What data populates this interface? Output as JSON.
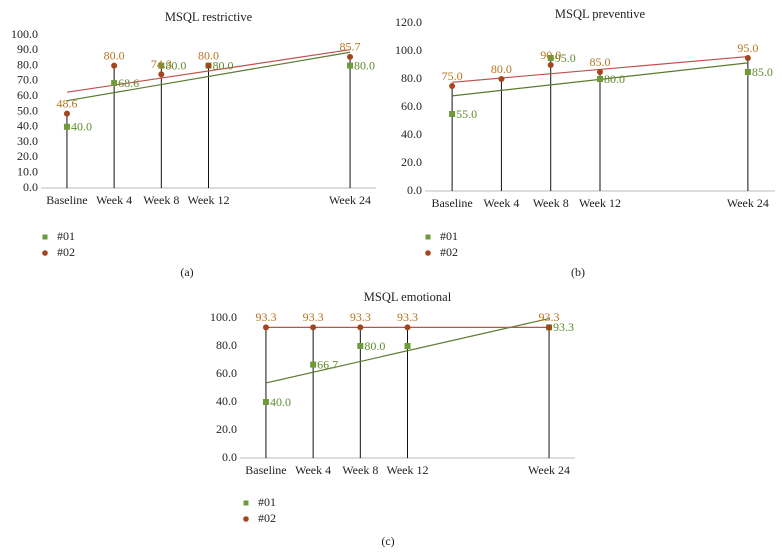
{
  "chart_data": [
    {
      "type": "scatter",
      "title": "MSQL restrictive",
      "caption": "(a)",
      "x": [
        0,
        4,
        8,
        12,
        24
      ],
      "xlim": [
        -2.2,
        26.2
      ],
      "xticks": [
        {
          "value": 0,
          "label": "Baseline"
        },
        {
          "value": 4,
          "label": "Week 4"
        },
        {
          "value": 8,
          "label": "Week 8"
        },
        {
          "value": 12,
          "label": "Week 12"
        },
        {
          "value": 24,
          "label": "Week 24"
        }
      ],
      "ylim": [
        0,
        100
      ],
      "yticks": [
        {
          "value": 0,
          "label": "0.0"
        },
        {
          "value": 10,
          "label": "10.0"
        },
        {
          "value": 20,
          "label": "20.0"
        },
        {
          "value": 30,
          "label": "30.0"
        },
        {
          "value": 40,
          "label": "40.0"
        },
        {
          "value": 50,
          "label": "50.0"
        },
        {
          "value": 60,
          "label": "60.0"
        },
        {
          "value": 70,
          "label": "70.0"
        },
        {
          "value": 80,
          "label": "80.0"
        },
        {
          "value": 90,
          "label": "90.0"
        },
        {
          "value": 100,
          "label": "100.0"
        }
      ],
      "trendline": true,
      "drop_lines": true,
      "series": [
        {
          "name": "#01",
          "color": "#6f9a3a",
          "trend_color": "#5b7a2c",
          "label_color": "#5f8a2e",
          "marker": "square",
          "values": [
            40.0,
            68.6,
            80.0,
            80.0,
            80.0
          ],
          "value_labels": [
            "40.0",
            "68.6",
            "80.0",
            "80.0",
            "80.0"
          ]
        },
        {
          "name": "#02",
          "color": "#a3461c",
          "trend_color": "#c0504d",
          "label_color": "#b5741f",
          "marker": "circle",
          "values": [
            48.6,
            80.0,
            74.3,
            80.0,
            85.7
          ],
          "value_labels": [
            "48.6",
            "80.0",
            "74.3",
            "80.0",
            "85.7"
          ]
        }
      ]
    },
    {
      "type": "scatter",
      "title": "MSQL preventive",
      "caption": "(b)",
      "x": [
        0,
        4,
        8,
        12,
        24
      ],
      "xlim": [
        -2.2,
        26.2
      ],
      "xticks": [
        {
          "value": 0,
          "label": "Baseline"
        },
        {
          "value": 4,
          "label": "Week 4"
        },
        {
          "value": 8,
          "label": "Week 8"
        },
        {
          "value": 12,
          "label": "Week 12"
        },
        {
          "value": 24,
          "label": "Week 24"
        }
      ],
      "ylim": [
        0,
        120
      ],
      "yticks": [
        {
          "value": 0,
          "label": "0.0"
        },
        {
          "value": 20,
          "label": "20.0"
        },
        {
          "value": 40,
          "label": "40.0"
        },
        {
          "value": 60,
          "label": "60.0"
        },
        {
          "value": 80,
          "label": "80.0"
        },
        {
          "value": 100,
          "label": "100.0"
        },
        {
          "value": 120,
          "label": "120.0"
        }
      ],
      "trendline": true,
      "drop_lines": true,
      "series": [
        {
          "name": "#01",
          "color": "#6f9a3a",
          "trend_color": "#5b7a2c",
          "label_color": "#5f8a2e",
          "marker": "square",
          "values": [
            55.0,
            null,
            95.0,
            80.0,
            85.0
          ],
          "value_labels": [
            "55.0",
            null,
            "95.0",
            "80.0",
            "85.0"
          ]
        },
        {
          "name": "#02",
          "color": "#a3461c",
          "trend_color": "#c0504d",
          "label_color": "#b5741f",
          "marker": "circle",
          "values": [
            75.0,
            80.0,
            90.0,
            85.0,
            95.0
          ],
          "value_labels": [
            "75.0",
            "80.0",
            "90.0",
            "85.0",
            "95.0"
          ]
        }
      ]
    },
    {
      "type": "scatter",
      "title": "MSQL emotional",
      "caption": "(c)",
      "x": [
        0,
        4,
        8,
        12,
        24
      ],
      "xlim": [
        -2.2,
        26.2
      ],
      "xticks": [
        {
          "value": 0,
          "label": "Baseline"
        },
        {
          "value": 4,
          "label": "Week 4"
        },
        {
          "value": 8,
          "label": "Week 8"
        },
        {
          "value": 12,
          "label": "Week 12"
        },
        {
          "value": 24,
          "label": "Week 24"
        }
      ],
      "ylim": [
        0,
        100
      ],
      "yticks": [
        {
          "value": 0,
          "label": "0.0"
        },
        {
          "value": 20,
          "label": "20.0"
        },
        {
          "value": 40,
          "label": "40.0"
        },
        {
          "value": 60,
          "label": "60.0"
        },
        {
          "value": 80,
          "label": "80.0"
        },
        {
          "value": 100,
          "label": "100.0"
        }
      ],
      "trendline": true,
      "drop_lines": true,
      "series": [
        {
          "name": "#01",
          "color": "#6f9a3a",
          "trend_color": "#5b7a2c",
          "label_color": "#5f8a2e",
          "marker": "square",
          "values": [
            40.0,
            66.7,
            80.0,
            80.0,
            93.3
          ],
          "value_labels": [
            "40.0",
            "66.7",
            "80.0",
            null,
            "93.3"
          ]
        },
        {
          "name": "#02",
          "color": "#a3461c",
          "trend_color": "#c0504d",
          "label_color": "#b5741f",
          "marker": "circle",
          "values": [
            93.3,
            93.3,
            93.3,
            93.3,
            93.3
          ],
          "value_labels": [
            "93.3",
            "93.3",
            "93.3",
            "93.3",
            "93.3"
          ]
        }
      ]
    }
  ]
}
